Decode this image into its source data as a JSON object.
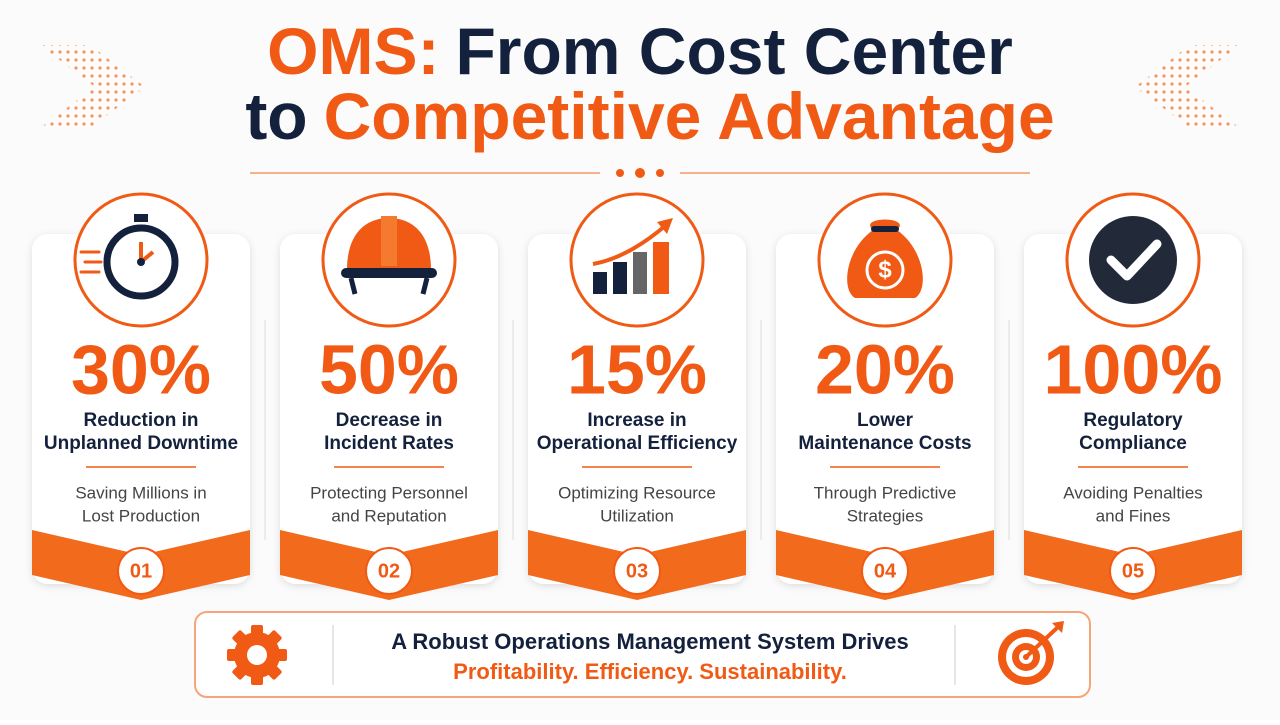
{
  "header": {
    "title_part1": "OMS:",
    "title_part2": "From Cost Center",
    "title_part3": "to",
    "title_part4": "Competitive Advantage"
  },
  "cards": [
    {
      "stat": "30%",
      "label": [
        "Reduction in",
        "Unplanned Downtime"
      ],
      "description": [
        "Saving Millions in",
        "Lost Production"
      ],
      "number": "01"
    },
    {
      "stat": "50%",
      "label": [
        "Decrease in",
        "Incident Rates"
      ],
      "description": [
        "Protecting Personnel",
        "and Reputation"
      ],
      "number": "02"
    },
    {
      "stat": "15%",
      "label": [
        "Increase in",
        "Operational Efficiency"
      ],
      "description": [
        "Optimizing Resource",
        "Utilization"
      ],
      "number": "03"
    },
    {
      "stat": "20%",
      "label": [
        "Lower",
        "Maintenance Costs"
      ],
      "description": [
        "Through Predictive",
        "Strategies"
      ],
      "number": "04"
    },
    {
      "stat": "100%",
      "label": [
        "Regulatory",
        "Compliance"
      ],
      "description": [
        "Avoiding Penalties",
        "and Fines"
      ],
      "number": "05"
    }
  ],
  "footer": {
    "line1": "A Robust Operations Management System Drives",
    "line2": "Profitability. Efficiency. Sustainability."
  }
}
